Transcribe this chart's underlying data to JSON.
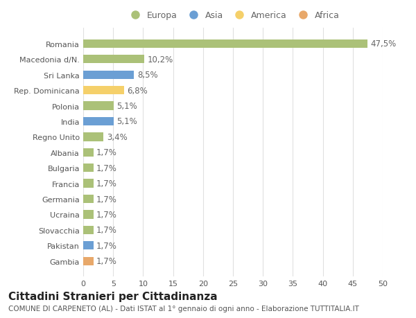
{
  "categories": [
    "Romania",
    "Macedonia d/N.",
    "Sri Lanka",
    "Rep. Dominicana",
    "Polonia",
    "India",
    "Regno Unito",
    "Albania",
    "Bulgaria",
    "Francia",
    "Germania",
    "Ucraina",
    "Slovacchia",
    "Pakistan",
    "Gambia"
  ],
  "values": [
    47.5,
    10.2,
    8.5,
    6.8,
    5.1,
    5.1,
    3.4,
    1.7,
    1.7,
    1.7,
    1.7,
    1.7,
    1.7,
    1.7,
    1.7
  ],
  "labels": [
    "47,5%",
    "10,2%",
    "8,5%",
    "6,8%",
    "5,1%",
    "5,1%",
    "3,4%",
    "1,7%",
    "1,7%",
    "1,7%",
    "1,7%",
    "1,7%",
    "1,7%",
    "1,7%",
    "1,7%"
  ],
  "colors": [
    "#abc178",
    "#abc178",
    "#6b9fd4",
    "#f5d06a",
    "#abc178",
    "#6b9fd4",
    "#abc178",
    "#abc178",
    "#abc178",
    "#abc178",
    "#abc178",
    "#abc178",
    "#abc178",
    "#6b9fd4",
    "#e8a86a"
  ],
  "legend": [
    {
      "label": "Europa",
      "color": "#abc178"
    },
    {
      "label": "Asia",
      "color": "#6b9fd4"
    },
    {
      "label": "America",
      "color": "#f5d06a"
    },
    {
      "label": "Africa",
      "color": "#e8a86a"
    }
  ],
  "title": "Cittadini Stranieri per Cittadinanza",
  "subtitle": "COMUNE DI CARPENETO (AL) - Dati ISTAT al 1° gennaio di ogni anno - Elaborazione TUTTITALIA.IT",
  "xlim": [
    0,
    50
  ],
  "xticks": [
    0,
    5,
    10,
    15,
    20,
    25,
    30,
    35,
    40,
    45,
    50
  ],
  "bg_color": "#ffffff",
  "grid_color": "#e0e0e0",
  "bar_height": 0.55,
  "label_fontsize": 8.5,
  "tick_fontsize": 8,
  "ytick_fontsize": 8,
  "title_fontsize": 11,
  "subtitle_fontsize": 7.5
}
